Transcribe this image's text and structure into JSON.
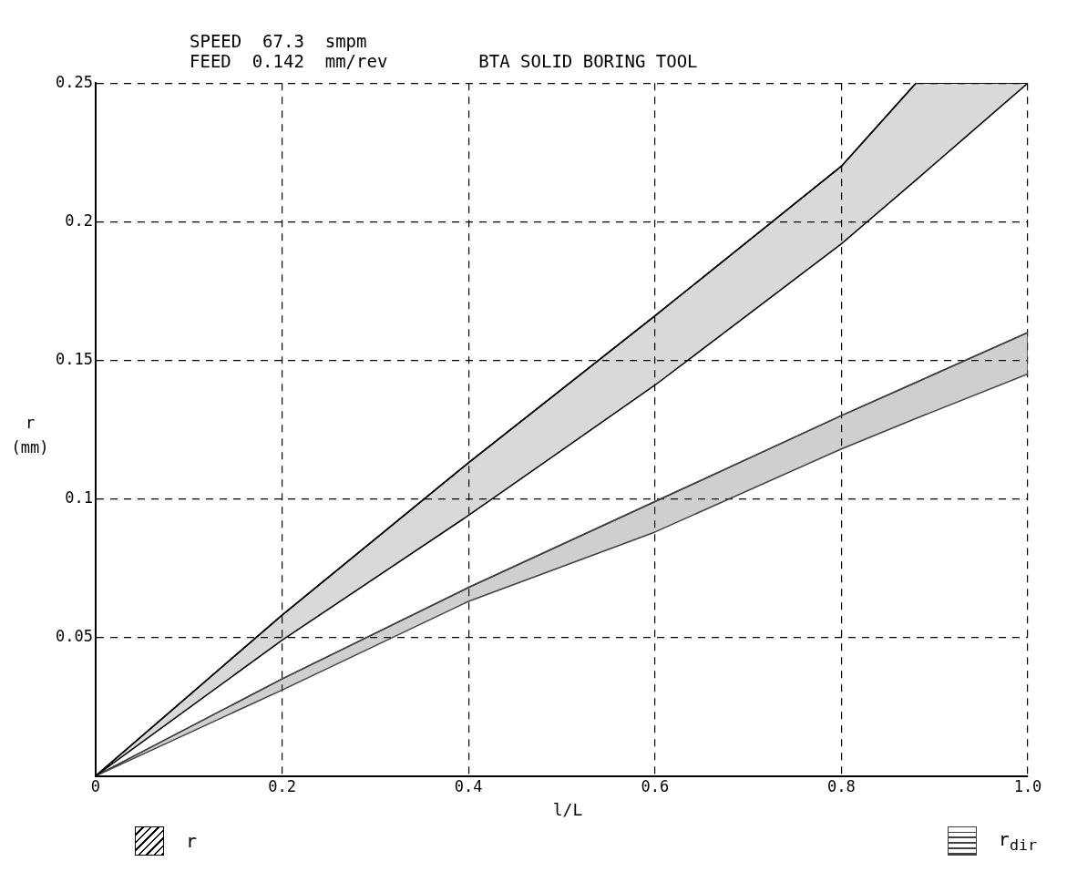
{
  "chart_data": {
    "type": "line",
    "title": "BTA SOLID BORING TOOL",
    "annotations": [
      "SPEED  67.3  smpm",
      "FEED  0.142  mm/rev"
    ],
    "xlabel": "l/L",
    "ylabel": "r (mm)",
    "series": [
      {
        "name": "r",
        "color": "#000000",
        "x": [
          0,
          0.2,
          0.4,
          0.6,
          0.8,
          0.88,
          1.0
        ],
        "values": [
          0,
          0.058,
          0.113,
          0.166,
          0.22,
          0.25,
          0.25
        ],
        "lower": [
          0,
          0.049,
          0.094,
          0.141,
          0.192,
          0.215,
          0.25
        ],
        "upper": [
          0,
          0.058,
          0.113,
          0.166,
          0.22,
          0.25,
          0.25
        ]
      },
      {
        "name": "r$_{dir}$",
        "color": "#404040",
        "x": [
          0,
          0.2,
          0.4,
          0.6,
          0.8,
          0.88,
          1.0
        ],
        "values": [
          0,
          0.035,
          0.068,
          0.099,
          0.13,
          0.142,
          0.16
        ],
        "lower": [
          0,
          0.031,
          0.063,
          0.088,
          0.118,
          0.129,
          0.145
        ],
        "upper": [
          0,
          0.035,
          0.068,
          0.099,
          0.13,
          0.142,
          0.16
        ]
      }
    ],
    "xlim": [
      0,
      1
    ],
    "xticks": [
      0,
      0.2,
      0.4,
      0.6,
      0.8,
      {
        "value": 1,
        "label": "1.0"
      }
    ],
    "ylim": [
      0,
      0.25
    ],
    "yticks": [
      {
        "value": 0,
        "label": null
      },
      0.05,
      0.1,
      0.15,
      0.2,
      0.25
    ],
    "grid": true,
    "legend": "bottom"
  }
}
